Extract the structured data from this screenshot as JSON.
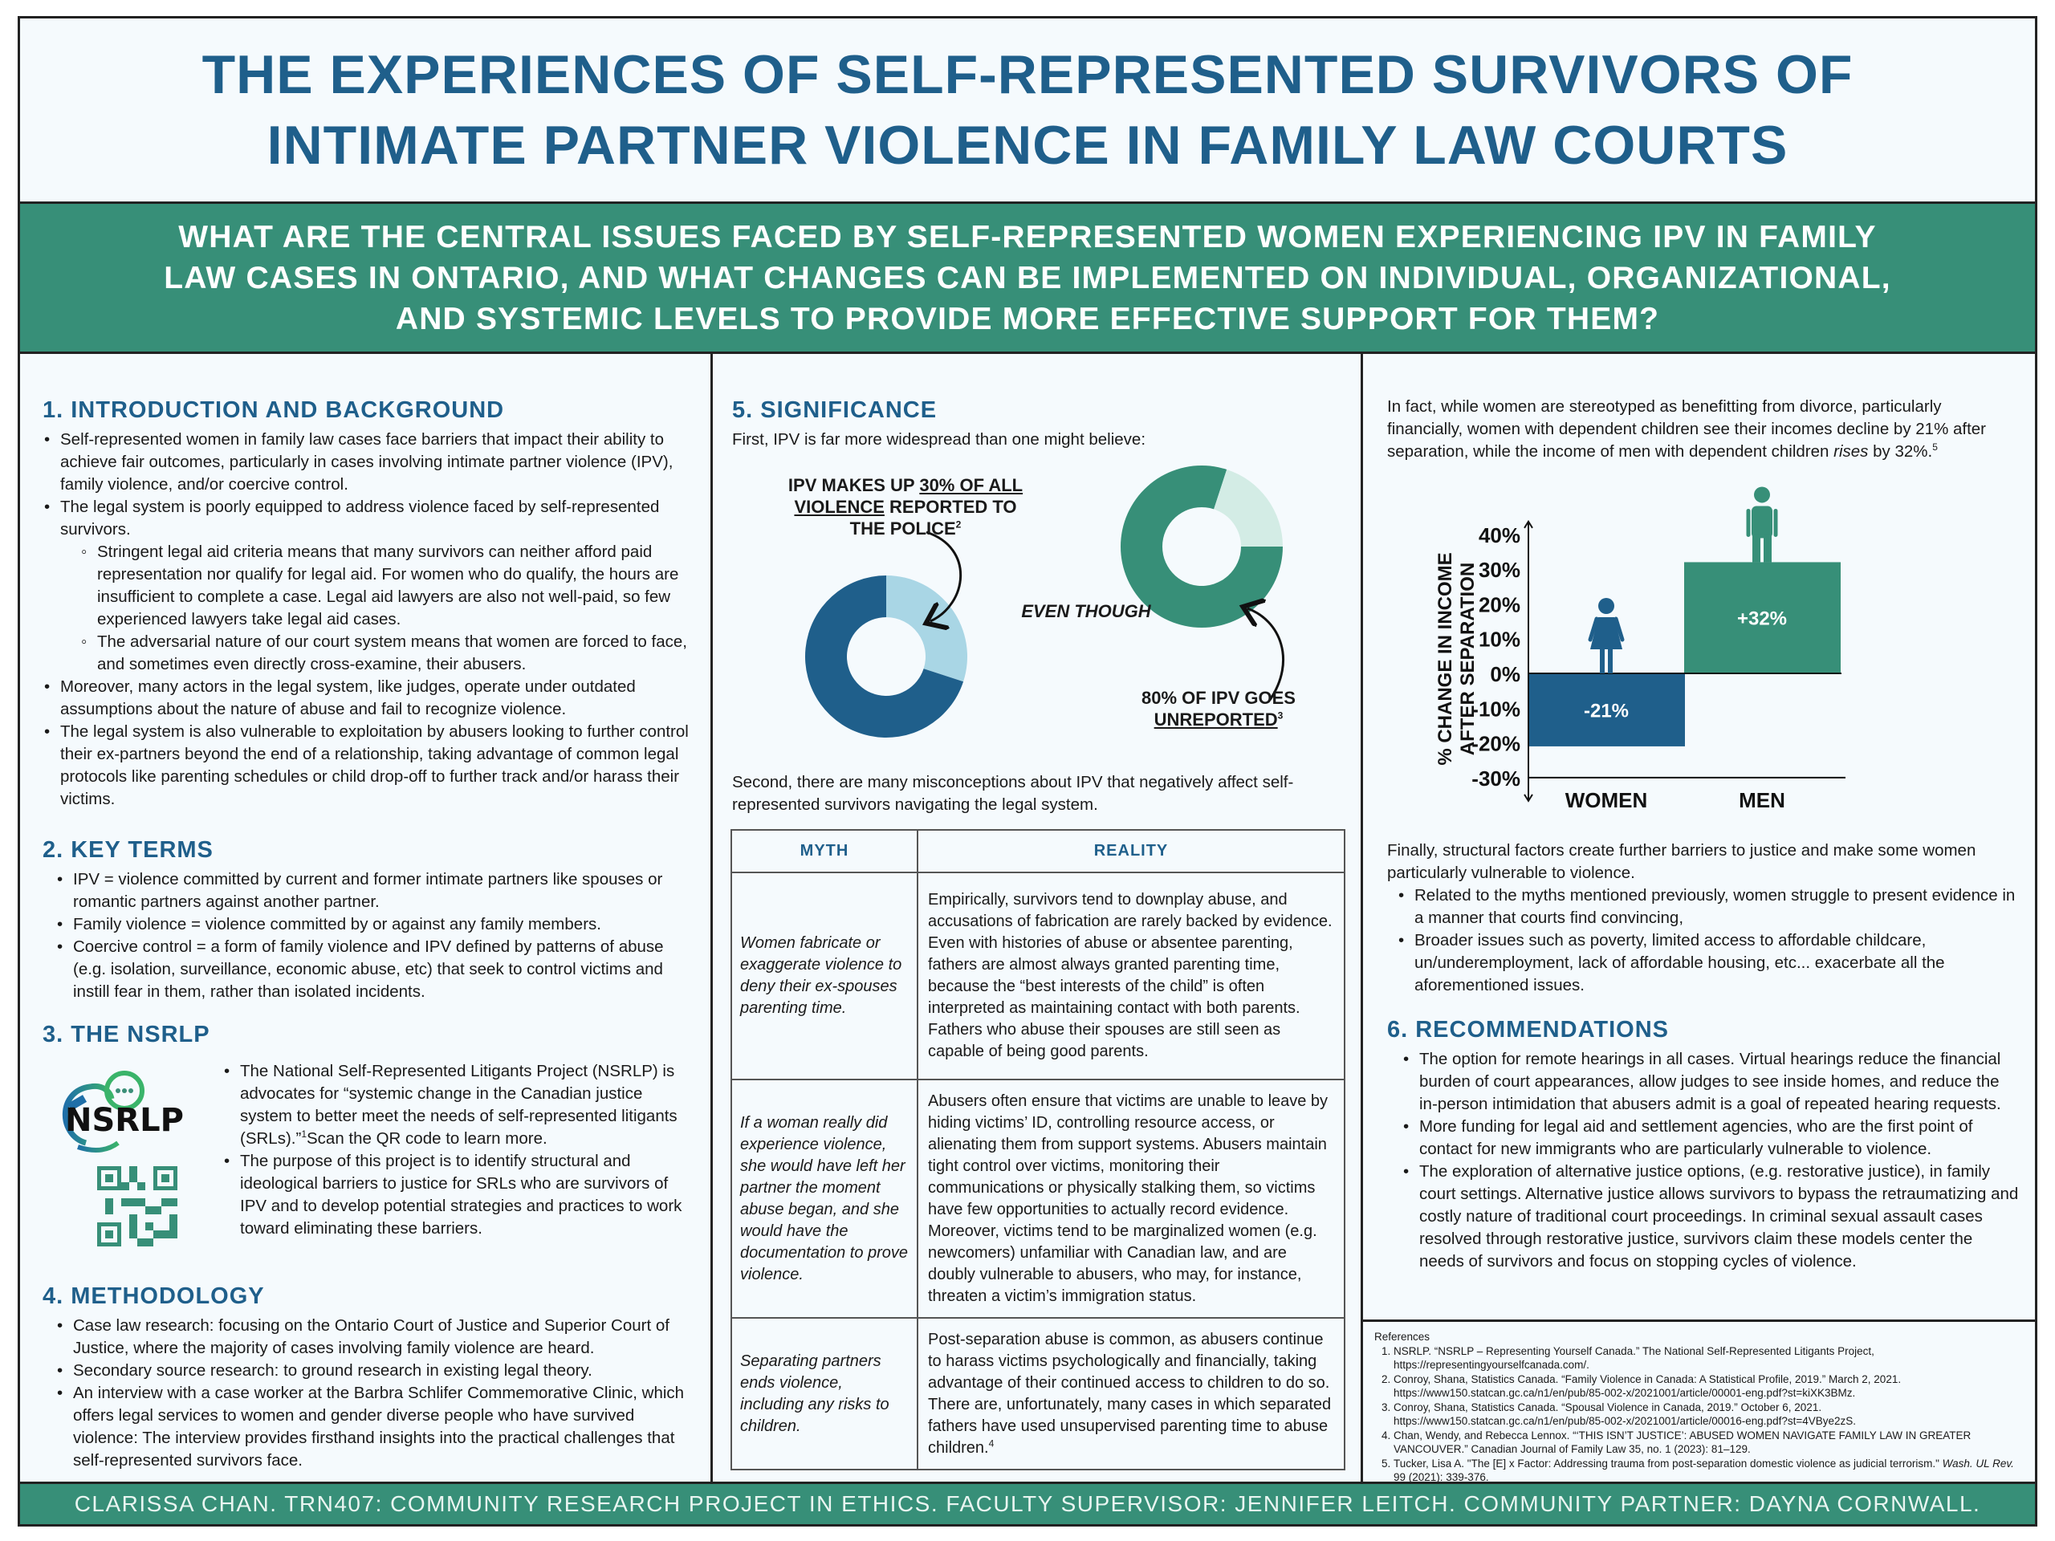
{
  "title": {
    "line1": "THE EXPERIENCES OF SELF-REPRESENTED SURVIVORS OF",
    "line2": "INTIMATE PARTNER VIOLENCE IN FAMILY LAW COURTS"
  },
  "question": {
    "line1": "WHAT ARE THE CENTRAL ISSUES FACED BY SELF-REPRESENTED WOMEN EXPERIENCING IPV IN FAMILY",
    "line2": "LAW CASES IN ONTARIO, AND WHAT CHANGES CAN BE IMPLEMENTED ON INDIVIDUAL, ORGANIZATIONAL,",
    "line3": "AND SYSTEMIC LEVELS TO PROVIDE MORE EFFECTIVE SUPPORT FOR THEM?"
  },
  "intro": {
    "heading": "1. INTRODUCTION AND BACKGROUND",
    "b1": "Self-represented women in family law cases face barriers that impact their ability to achieve fair outcomes, particularly in cases involving intimate partner violence (IPV), family violence, and/or coercive control.",
    "b2": "The legal system is poorly equipped to address violence faced by self-represented survivors.",
    "b2_sub1": "Stringent legal aid criteria means that many survivors can neither afford paid representation nor qualify for legal aid. For women who do qualify, the hours are insufficient to complete a case. Legal aid lawyers are also not well-paid, so few experienced lawyers take legal aid cases.",
    "b2_sub2": "The adversarial nature of our court system means that women are forced to face, and sometimes even directly cross-examine, their abusers.",
    "b3": "Moreover, many actors in the legal system, like judges, operate under outdated assumptions about the nature of abuse and fail to recognize violence.",
    "b4": "The legal system is also vulnerable to exploitation by abusers looking to further control their ex-partners beyond the end of a relationship, taking advantage of common legal protocols like parenting schedules or child drop-off to further track and/or harass their victims."
  },
  "terms": {
    "heading": "2. KEY TERMS",
    "items": [
      "IPV = violence committed by current and former intimate partners like spouses or romantic partners against another partner.",
      "Family violence = violence committed by or against any family members.",
      "Coercive control = a form of family violence and IPV defined by patterns of abuse (e.g. isolation, surveillance, economic abuse, etc) that seek to control victims and instill fear in them, rather than isolated incidents."
    ]
  },
  "nsrlp": {
    "heading": "3. THE NSRLP",
    "logo_text": "NSRLP",
    "b1": "The National Self-Represented Litigants Project (NSRLP) is advocates for “systemic change in the Canadian justice system to better meet the needs of self-represented litigants (SRLs).”",
    "b1_sup": "1",
    "b1_tail": "Scan the QR code to learn more.",
    "b2": "The purpose of this project is to identify structural and ideological barriers to justice for SRLs who are survivors of IPV and to develop potential strategies and practices to work toward eliminating these barriers."
  },
  "method": {
    "heading": "4. METHODOLOGY",
    "items": [
      "Case law research: focusing on the Ontario Court of Justice and Superior Court of Justice, where the majority of cases involving family violence are heard.",
      "Secondary source research: to ground research in existing legal theory.",
      "An interview with a case worker at the Barbra Schlifer Commemorative Clinic, which offers legal services to women and gender diverse people who have survived violence: The interview provides firsthand insights into the practical challenges that self-represented survivors face."
    ]
  },
  "significance": {
    "heading": "5. SIGNIFICANCE",
    "first": "First, IPV is far more widespread than one might believe:",
    "donut1_label_a": "IPV makes up ",
    "donut1_label_u1": "30% of all violence",
    "donut1_label_b": " reported to the police",
    "donut1_sup": "2",
    "even_though": "EVEN THOUGH",
    "donut2_label_a": "80% of IPV goes ",
    "donut2_label_u": "unreported",
    "donut2_sup": "3",
    "second": "Second, there are many misconceptions about IPV that negatively affect self-represented survivors navigating the legal system.",
    "table": {
      "headers": [
        "MYTH",
        "REALITY"
      ],
      "rows": [
        {
          "myth": "Women fabricate or exaggerate violence to deny their ex-spouses parenting time.",
          "reality": "Empirically, survivors tend to downplay abuse, and accusations of fabrication are rarely backed by evidence. Even with histories of abuse or absentee parenting, fathers are almost always granted parenting time, because the “best interests of the child” is often interpreted as maintaining contact with both parents. Fathers who abuse their spouses are still seen as capable of being good parents."
        },
        {
          "myth": "If a woman really did experience violence, she would have left her partner the moment abuse began, and she would have the documentation to prove violence.",
          "reality": "Abusers often ensure that victims are unable to leave by hiding victims’ ID, controlling resource access, or alienating them from support systems. Abusers maintain tight control over victims, monitoring their communications or physically stalking them, so victims have few opportunities to actually record evidence. Moreover, victims tend to be marginalized women (e.g. newcomers) unfamiliar with Canadian law, and are doubly vulnerable to abusers, who may, for instance, threaten a victim’s immigration status."
        },
        {
          "myth": "Separating partners ends violence, including any risks to children.",
          "reality": "Post-separation abuse is common, as abusers continue to harass victims psychologically and financially, taking advantage of their continued access to children to do so. There are, unfortunately, many cases in which separated fathers have used unsupervised parenting time to abuse children.",
          "reality_sup": "4"
        }
      ]
    }
  },
  "income": {
    "para_a": "In fact, while women are stereotyped as benefitting from divorce, particularly financially, women with dependent children see their incomes decline by 21% after separation, while the income of men with dependent children ",
    "para_em": "rises",
    "para_b": " by 32%.",
    "para_sup": "5"
  },
  "chart_data": [
    {
      "type": "pie",
      "style": "donut",
      "values": [
        30,
        70
      ],
      "colors": [
        "#a9d6e5",
        "#1f5f8b"
      ]
    },
    {
      "type": "pie",
      "style": "donut",
      "values": [
        80,
        20
      ],
      "colors": [
        "#378f78",
        "#d3ece5"
      ]
    },
    {
      "type": "bar",
      "categories": [
        "WOMEN",
        "MEN"
      ],
      "values": [
        -21,
        32
      ],
      "data_labels": [
        "-21%",
        "+32%"
      ],
      "colors": [
        "#1f5f8b",
        "#378f78"
      ],
      "ylabel_line1": "% CHANGE IN INCOME",
      "ylabel_line2": "AFTER SEPARATION",
      "yticks": [
        "40%",
        "30%",
        "20%",
        "10%",
        "0%",
        "-10%",
        "-20%",
        "-30%"
      ],
      "ylim": [
        -30,
        40
      ],
      "icons": [
        "woman-icon",
        "man-icon"
      ]
    }
  ],
  "structural": {
    "intro": "Finally, structural factors create further barriers to justice and make some women particularly vulnerable to violence.",
    "items": [
      "Related to the myths mentioned previously, women struggle to present evidence in a manner that courts find convincing,",
      "Broader issues such as poverty, limited access to affordable childcare, un/underemployment, lack of affordable housing, etc... exacerbate all the aforementioned issues."
    ]
  },
  "recs": {
    "heading": "6. RECOMMENDATIONS",
    "items": [
      "The option for remote hearings in all cases. Virtual hearings reduce the financial burden of court appearances, allow judges to see inside homes, and reduce the in-person intimidation that abusers admit is a goal of repeated hearing requests.",
      "More funding for legal aid and settlement agencies, who are the first point of contact for new immigrants who are particularly vulnerable to violence.",
      "The exploration of alternative justice options, (e.g. restorative justice), in family court settings. Alternative justice allows survivors to bypass the retraumatizing and costly nature of traditional court proceedings. In criminal sexual assault cases resolved through restorative justice, survivors claim these models center the needs of survivors and focus on stopping cycles of violence."
    ]
  },
  "references": {
    "heading": "References",
    "items": [
      "NSRLP. “NSRLP – Representing Yourself Canada.” The National Self-Represented Litigants Project, https://representingyourselfcanada.com/.",
      "Conroy, Shana, Statistics Canada. “Family Violence in Canada: A Statistical Profile, 2019.” March 2, 2021. https://www150.statcan.gc.ca/n1/en/pub/85-002-x/2021001/article/00001-eng.pdf?st=kiXK3BMz.",
      "Conroy, Shana, Statistics Canada. “Spousal Violence in Canada, 2019.” October 6, 2021. https://www150.statcan.gc.ca/n1/en/pub/85-002-x/2021001/article/00016-eng.pdf?st=4VBye2zS.",
      "Chan, Wendy, and Rebecca Lennox. “‘THIS ISN’T JUSTICE’: ABUSED WOMEN NAVIGATE FAMILY LAW IN GREATER VANCOUVER.” Canadian Journal of Family Law 35, no. 1 (2023): 81–129."
    ],
    "item5_a": "Tucker, Lisa A. \"The [E] x Factor: Addressing trauma from post-separation domestic violence as judicial terrorism.\" ",
    "item5_em": "Wash. UL Rev.",
    "item5_b": " 99 (2021): 339-376."
  },
  "footer": "CLARISSA CHAN. TRN407: COMMUNITY RESEARCH PROJECT IN ETHICS. FACULTY SUPERVISOR: JENNIFER LEITCH. COMMUNITY PARTNER: DAYNA CORNWALL."
}
